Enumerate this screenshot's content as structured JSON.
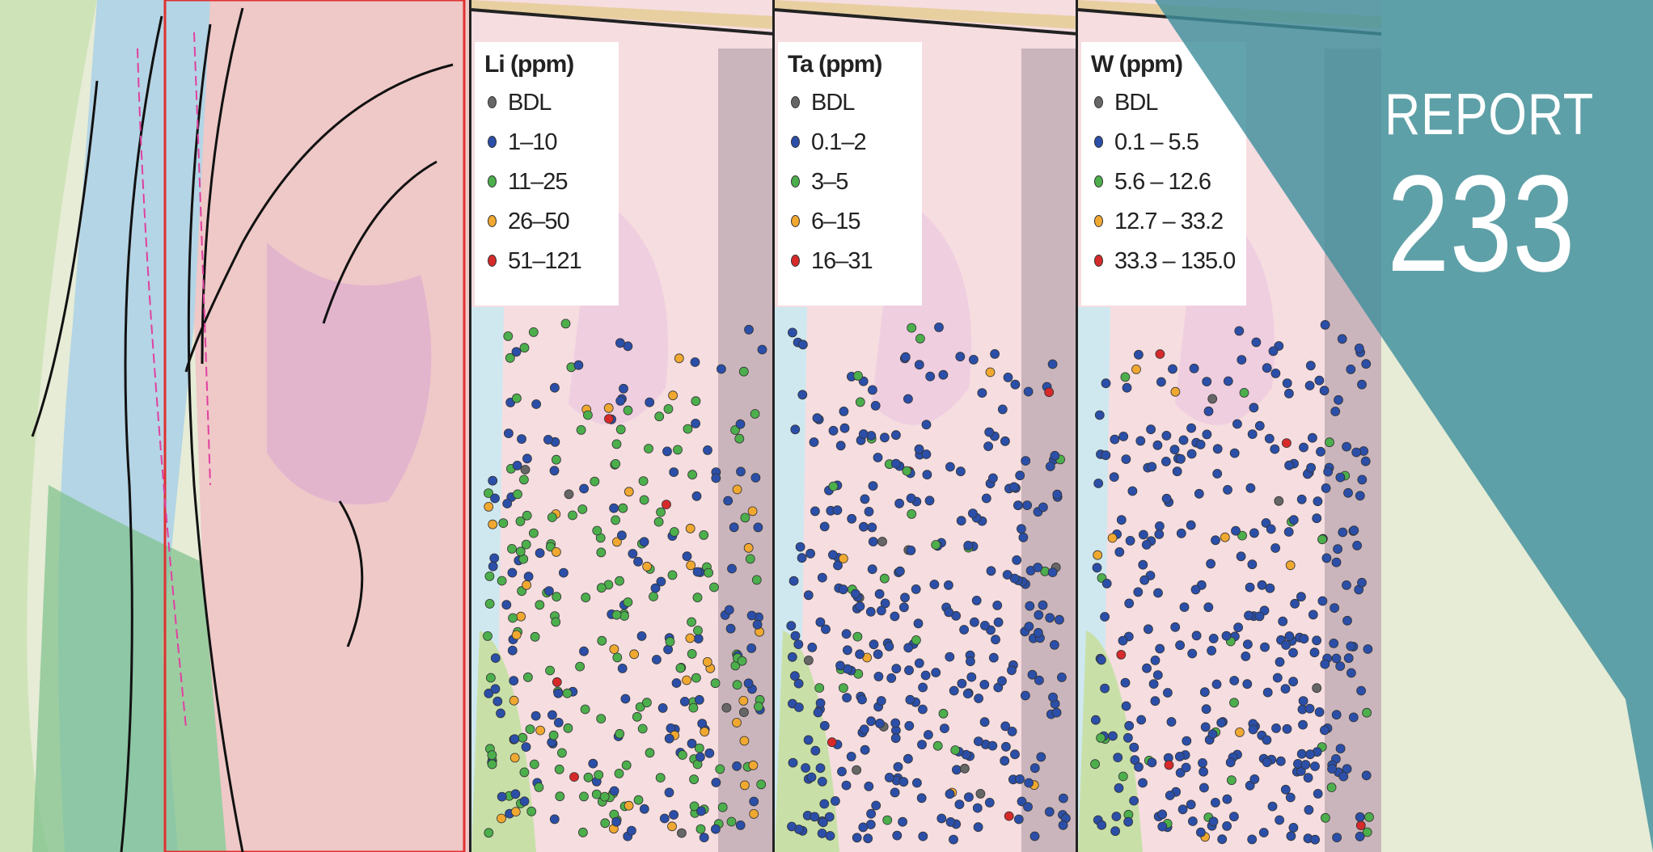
{
  "cover": {
    "label": "REPORT",
    "number": "233"
  },
  "panels": [
    {
      "title": "Li (ppm)",
      "classes": [
        {
          "label": "BDL",
          "color": "#666666"
        },
        {
          "label": "1–10",
          "color": "#2b4fa8"
        },
        {
          "label": "11–25",
          "color": "#4caf4c"
        },
        {
          "label": "26–50",
          "color": "#f0a830"
        },
        {
          "label": "51–121",
          "color": "#d62a2a"
        }
      ]
    },
    {
      "title": "Ta (ppm)",
      "classes": [
        {
          "label": "BDL",
          "color": "#666666"
        },
        {
          "label": "0.1–2",
          "color": "#2b4fa8"
        },
        {
          "label": "3–5",
          "color": "#4caf4c"
        },
        {
          "label": "6–15",
          "color": "#f0a830"
        },
        {
          "label": "16–31",
          "color": "#d62a2a"
        }
      ]
    },
    {
      "title": "W (ppm)",
      "classes": [
        {
          "label": "BDL",
          "color": "#666666"
        },
        {
          "label": "0.1 – 5.5",
          "color": "#2b4fa8"
        },
        {
          "label": "5.6 – 12.6",
          "color": "#4caf4c"
        },
        {
          "label": "12.7 – 33.2",
          "color": "#f0a830"
        },
        {
          "label": "33.3 – 135.0",
          "color": "#d62a2a"
        }
      ]
    }
  ],
  "colors": {
    "teal": "#3f8f9c",
    "map_pink": "#f6dde0",
    "fault": "#111111",
    "frame_red": "#e03030"
  }
}
